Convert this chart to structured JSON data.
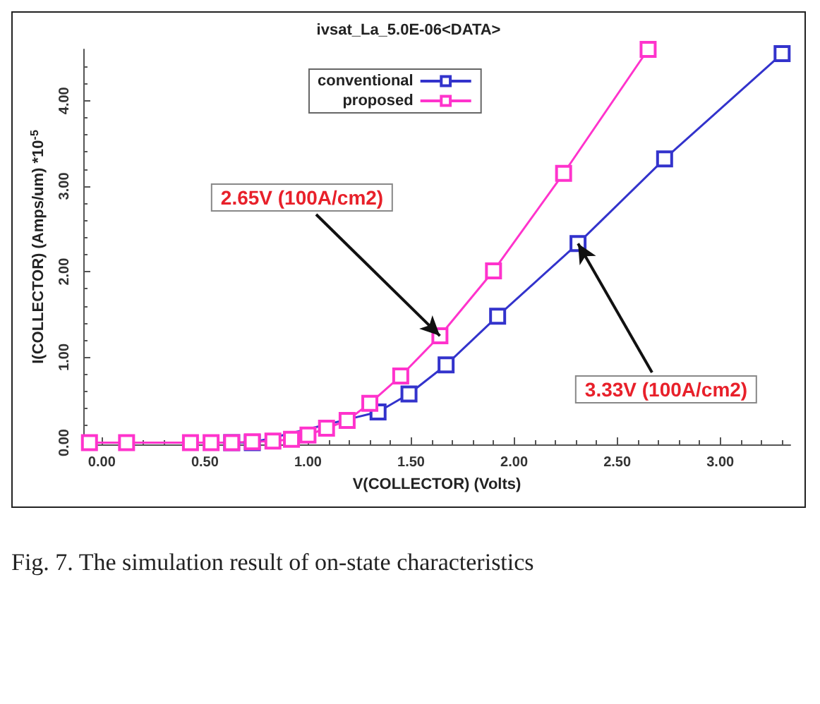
{
  "chart_data": {
    "type": "line",
    "title": "ivsat_La_5.0E-06<DATA>",
    "xlabel": "V(COLLECTOR) (Volts)",
    "ylabel": "I(COLLECTOR) (Amps/um) *10$^{-5}$",
    "xlim": [
      -0.09,
      3.34
    ],
    "ylim": [
      -0.02,
      4.6
    ],
    "xticks": [
      {
        "value": 0,
        "label": "0.00"
      },
      {
        "value": 0.5,
        "label": "0.50"
      },
      {
        "value": 1,
        "label": "1.00"
      },
      {
        "value": 1.5,
        "label": "1.50"
      },
      {
        "value": 2,
        "label": "2.00"
      },
      {
        "value": 2.5,
        "label": "2.50"
      },
      {
        "value": 3,
        "label": "3.00"
      }
    ],
    "yticks": [
      {
        "value": 0,
        "label": "0.00"
      },
      {
        "value": 1,
        "label": "1.00"
      },
      {
        "value": 2,
        "label": "2.00"
      },
      {
        "value": 3,
        "label": "3.00"
      },
      {
        "value": 4,
        "label": "4.00"
      }
    ],
    "grid": false,
    "legend": "top",
    "marker": "square",
    "line_style": "solid",
    "series": [
      {
        "name": "conventional",
        "color": "#3333cc",
        "x": [
          0.63,
          0.73,
          0.83,
          0.92,
          1.0,
          1.09,
          1.21,
          1.34,
          1.49,
          1.67,
          1.92,
          2.31,
          2.73,
          3.3
        ],
        "values": [
          0,
          0,
          null,
          null,
          null,
          null,
          null,
          0.36,
          0.57,
          0.91,
          1.48,
          2.33,
          3.32,
          4.55
        ]
      },
      {
        "name": "proposed",
        "color": "#ff33cc",
        "x": [
          -0.06,
          0.12,
          0.43,
          0.53,
          0.63,
          0.73,
          0.83,
          0.92,
          1.0,
          1.09,
          1.19,
          1.3,
          1.45,
          1.64,
          1.9,
          2.24,
          2.65
        ],
        "values": [
          0,
          0,
          0,
          0,
          0,
          0.01,
          0.02,
          0.04,
          0.09,
          0.17,
          0.26,
          0.46,
          0.78,
          1.25,
          2.01,
          3.15,
          4.6
        ]
      }
    ],
    "annotations": [
      {
        "text": "2.65V (100A/cm2)",
        "x": 1.64,
        "y": 1.25
      },
      {
        "text": "3.33V (100A/cm2)",
        "x": 2.31,
        "y": 2.33
      },
      "Fig. 7. The simulation result of on-state characteristics"
    ]
  }
}
